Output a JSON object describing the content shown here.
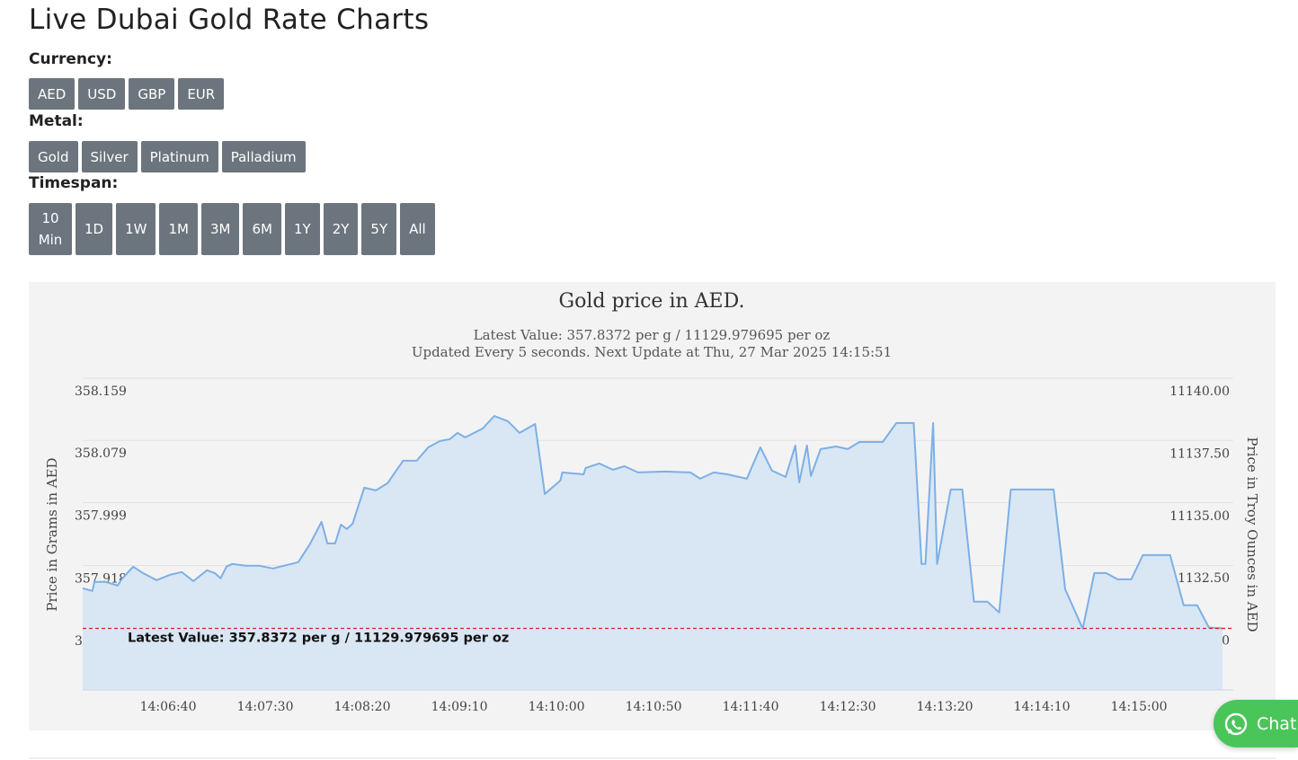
{
  "header": {
    "title": "Live Dubai Gold Rate Charts"
  },
  "controls": [
    {
      "label": "Currency:",
      "options": [
        "AED",
        "USD",
        "GBP",
        "EUR"
      ]
    },
    {
      "label": "Metal:",
      "options": [
        "Gold",
        "Silver",
        "Platinum",
        "Palladium"
      ]
    },
    {
      "label": "Timespan:",
      "options": [
        "10 Min",
        "1D",
        "1W",
        "1M",
        "3M",
        "6M",
        "1Y",
        "2Y",
        "5Y",
        "All"
      ]
    }
  ],
  "chart_data": {
    "type": "area",
    "title": "Gold price in AED.",
    "subtitle": [
      "Latest Value: 357.8372 per g / 11129.979695 per oz",
      "Updated Every 5 seconds. Next Update at Thu, 27 Mar 2025 14:15:51"
    ],
    "y_label": "Price in Grams in AED",
    "y2_label": "Price in Troy Ounces in AED",
    "color": "#7cb0e6",
    "fill_color": "#d9e6f4",
    "grid": true,
    "x": [
      "14:05:56",
      "14:06:01",
      "14:06:02",
      "14:06:08",
      "14:06:14",
      "14:06:16",
      "14:06:22",
      "14:06:27",
      "14:06:34",
      "14:06:41",
      "14:06:47",
      "14:06:53",
      "14:07:00",
      "14:07:04",
      "14:07:07",
      "14:07:10",
      "14:07:13",
      "14:07:20",
      "14:07:27",
      "14:07:34",
      "14:07:47",
      "14:07:53",
      "14:07:59",
      "14:08:02",
      "14:08:06",
      "14:08:09",
      "14:08:12",
      "14:08:15",
      "14:08:21",
      "14:08:27",
      "14:08:33",
      "14:08:41",
      "14:08:48",
      "14:08:54",
      "14:09:00",
      "14:09:05",
      "14:09:09",
      "14:09:13",
      "14:09:22",
      "14:09:28",
      "14:09:35",
      "14:09:41",
      "14:09:49",
      "14:09:54",
      "14:10:02",
      "14:10:03",
      "14:10:14",
      "14:10:15",
      "14:10:22",
      "14:10:29",
      "14:10:35",
      "14:10:42",
      "14:10:56",
      "14:11:09",
      "14:11:14",
      "14:11:21",
      "14:11:28",
      "14:11:38",
      "14:11:45",
      "14:11:51",
      "14:11:58",
      "14:12:03",
      "14:12:05",
      "14:12:09",
      "14:12:11",
      "14:12:16",
      "14:12:24",
      "14:12:30",
      "14:12:36",
      "14:12:48",
      "14:12:55",
      "14:13:04",
      "14:13:08",
      "14:13:10",
      "14:13:14",
      "14:13:16",
      "14:13:23",
      "14:13:29",
      "14:13:35",
      "14:13:42",
      "14:13:48",
      "14:13:54",
      "14:14:16",
      "14:14:22",
      "14:14:31",
      "14:14:37",
      "14:14:43",
      "14:14:49",
      "14:14:56",
      "14:15:02",
      "14:15:16",
      "14:15:23",
      "14:15:30",
      "14:15:36",
      "14:15:43"
    ],
    "values": [
      357.8888,
      357.8853,
      357.8969,
      357.8969,
      357.8923,
      357.9003,
      357.9165,
      357.9084,
      357.8992,
      357.9061,
      357.9096,
      357.898,
      357.9119,
      357.9084,
      357.9015,
      357.9165,
      357.92,
      357.9177,
      357.9177,
      357.9142,
      357.9223,
      357.9454,
      357.9742,
      357.9465,
      357.9465,
      357.9708,
      357.965,
      357.9719,
      358.0181,
      358.0147,
      358.0239,
      358.0528,
      358.0528,
      358.0701,
      358.0782,
      358.0805,
      358.0886,
      358.0828,
      358.0943,
      358.1105,
      358.1036,
      358.0886,
      358.1001,
      358.01,
      358.0274,
      358.0378,
      358.0354,
      358.0435,
      358.0493,
      358.0412,
      358.0458,
      358.0378,
      358.0389,
      358.0378,
      358.0297,
      358.0378,
      358.0354,
      358.0297,
      358.0701,
      358.0401,
      358.032,
      358.0724,
      358.0251,
      358.0724,
      358.0331,
      358.0678,
      358.0712,
      358.0678,
      358.077,
      358.077,
      358.1013,
      358.1013,
      357.92,
      357.92,
      358.1013,
      357.92,
      358.0158,
      358.0158,
      357.8715,
      357.8715,
      357.8576,
      358.0158,
      358.0158,
      357.8876,
      357.8368,
      357.9084,
      357.9084,
      357.9003,
      357.9003,
      357.9315,
      357.9315,
      357.8669,
      357.8669,
      357.8383,
      357.8372
    ],
    "xlim": [
      "14:05:56",
      "14:15:43"
    ],
    "xticks": [
      "14:06:40",
      "14:07:30",
      "14:08:20",
      "14:09:10",
      "14:10:00",
      "14:10:50",
      "14:11:40",
      "14:12:30",
      "14:13:20",
      "14:14:10",
      "14:15:00"
    ],
    "ylim": [
      357.758,
      358.159
    ],
    "yticks": [
      358.159,
      358.079,
      357.999,
      357.918,
      357.838
    ],
    "y2lim": [
      11127.5,
      11140
    ],
    "y2ticks": [
      {
        "value": 11140,
        "label": "11140.00"
      },
      {
        "value": 11137.5,
        "label": "11137.50"
      },
      {
        "value": 11135,
        "label": "11135.00"
      },
      {
        "value": 11132.5,
        "label": "11132.50"
      },
      {
        "value": 11130,
        "label": "11130.00"
      }
    ],
    "plot_line": {
      "value": 357.8372,
      "label": "Latest Value: 357.8372 per g / 11129.979695 per oz",
      "color": "#d8232a"
    }
  },
  "chat_button": {
    "label": "Chat"
  }
}
